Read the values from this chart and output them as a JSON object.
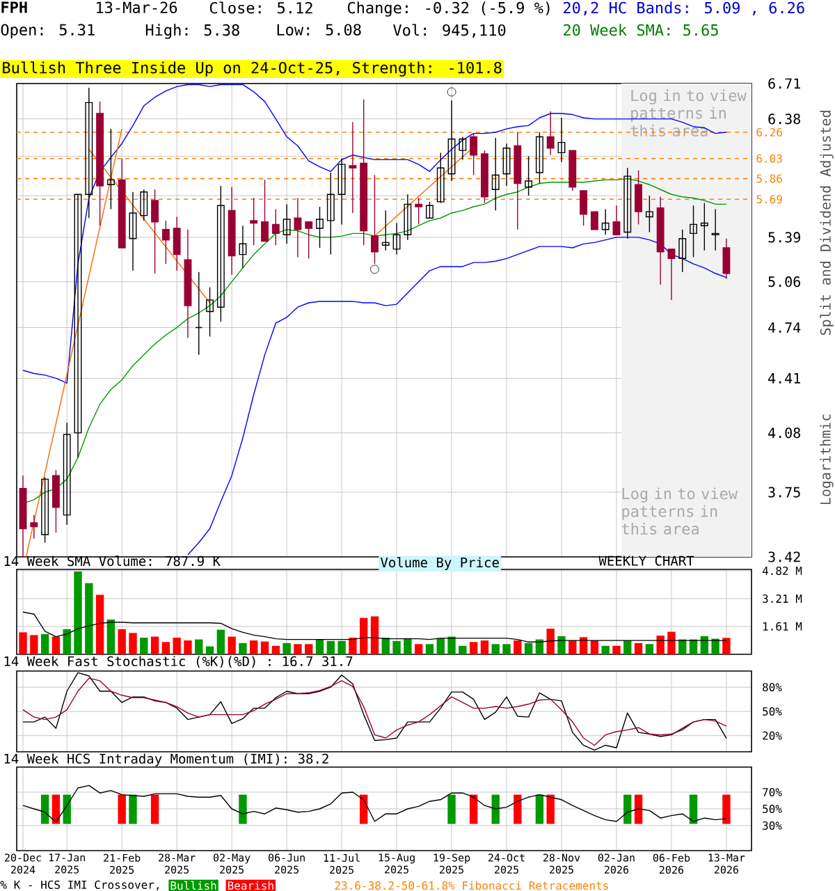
{
  "chart_data": [
    {
      "type": "candlestick",
      "title": "FPH",
      "x": [
        "2024-12-20",
        "2024-12-27",
        "2025-01-03",
        "2025-01-10",
        "2025-01-17",
        "2025-01-24",
        "2025-01-31",
        "2025-02-07",
        "2025-02-14",
        "2025-02-21",
        "2025-02-28",
        "2025-03-07",
        "2025-03-14",
        "2025-03-21",
        "2025-03-28",
        "2025-04-04",
        "2025-04-11",
        "2025-04-18",
        "2025-04-25",
        "2025-05-02",
        "2025-05-09",
        "2025-05-16",
        "2025-05-23",
        "2025-05-30",
        "2025-06-06",
        "2025-06-13",
        "2025-06-20",
        "2025-06-27",
        "2025-07-04",
        "2025-07-11",
        "2025-07-18",
        "2025-07-25",
        "2025-08-01",
        "2025-08-08",
        "2025-08-15",
        "2025-08-22",
        "2025-08-29",
        "2025-09-05",
        "2025-09-12",
        "2025-09-19",
        "2025-09-26",
        "2025-10-03",
        "2025-10-10",
        "2025-10-17",
        "2025-10-24",
        "2025-10-31",
        "2025-11-07",
        "2025-11-14",
        "2025-11-21",
        "2025-11-28",
        "2025-12-05",
        "2025-12-12",
        "2025-12-19",
        "2025-12-26",
        "2026-01-02",
        "2026-01-09",
        "2026-01-16",
        "2026-01-23",
        "2026-01-30",
        "2026-02-06",
        "2026-02-13",
        "2026-02-20",
        "2026-02-27",
        "2026-03-06",
        "2026-03-13"
      ],
      "ohlc": [
        [
          3.77,
          3.84,
          3.42,
          3.56
        ],
        [
          3.59,
          3.63,
          3.51,
          3.57
        ],
        [
          3.53,
          3.83,
          3.49,
          3.82
        ],
        [
          3.84,
          3.87,
          3.54,
          3.67
        ],
        [
          3.63,
          4.14,
          3.58,
          4.07
        ],
        [
          4.08,
          5.73,
          3.94,
          5.73
        ],
        [
          5.73,
          6.67,
          5.54,
          6.53
        ],
        [
          6.43,
          6.54,
          5.48,
          5.8
        ],
        [
          5.81,
          6.29,
          5.61,
          5.85
        ],
        [
          5.85,
          6.03,
          5.31,
          5.31
        ],
        [
          5.38,
          5.75,
          5.14,
          5.58
        ],
        [
          5.56,
          5.77,
          5.52,
          5.75
        ],
        [
          5.68,
          5.77,
          5.12,
          5.51
        ],
        [
          5.45,
          5.52,
          5.19,
          5.37
        ],
        [
          5.46,
          5.55,
          5.14,
          5.26
        ],
        [
          5.22,
          5.45,
          4.67,
          4.89
        ],
        [
          4.74,
          5.13,
          4.56,
          4.74
        ],
        [
          4.85,
          5.02,
          4.68,
          4.93
        ],
        [
          4.88,
          5.8,
          4.78,
          5.64
        ],
        [
          5.6,
          5.79,
          5.11,
          5.25
        ],
        [
          5.26,
          5.48,
          5.16,
          5.34
        ],
        [
          5.52,
          5.7,
          5.33,
          5.5
        ],
        [
          5.51,
          5.85,
          5.36,
          5.36
        ],
        [
          5.49,
          5.61,
          5.33,
          5.42
        ],
        [
          5.41,
          5.65,
          5.34,
          5.53
        ],
        [
          5.54,
          5.7,
          5.24,
          5.45
        ],
        [
          5.51,
          5.51,
          5.23,
          5.46
        ],
        [
          5.46,
          5.63,
          5.31,
          5.53
        ],
        [
          5.52,
          5.91,
          5.26,
          5.73
        ],
        [
          5.73,
          6.03,
          5.49,
          5.98
        ],
        [
          5.97,
          6.35,
          5.58,
          5.95
        ],
        [
          5.99,
          6.56,
          5.33,
          5.44
        ],
        [
          5.4,
          5.89,
          5.19,
          5.28
        ],
        [
          5.33,
          5.6,
          5.29,
          5.35
        ],
        [
          5.3,
          5.5,
          5.26,
          5.41
        ],
        [
          5.41,
          5.73,
          5.37,
          5.65
        ],
        [
          5.65,
          5.7,
          5.49,
          5.63
        ],
        [
          5.54,
          5.67,
          5.54,
          5.64
        ],
        [
          5.67,
          6.08,
          5.66,
          5.95
        ],
        [
          5.9,
          6.55,
          5.84,
          6.2
        ],
        [
          6.1,
          6.22,
          6.02,
          6.2
        ],
        [
          6.22,
          6.25,
          5.89,
          6.06
        ],
        [
          6.07,
          6.1,
          5.66,
          5.71
        ],
        [
          5.77,
          6.21,
          5.6,
          5.89
        ],
        [
          5.9,
          6.16,
          5.8,
          6.12
        ],
        [
          6.14,
          6.26,
          5.45,
          5.82
        ],
        [
          5.79,
          6.05,
          5.72,
          5.84
        ],
        [
          5.91,
          6.26,
          5.82,
          6.22
        ],
        [
          6.22,
          6.45,
          6.06,
          6.12
        ],
        [
          6.08,
          6.39,
          6.0,
          6.17
        ],
        [
          6.1,
          6.1,
          5.76,
          5.79
        ],
        [
          5.76,
          5.76,
          5.48,
          5.57
        ],
        [
          5.59,
          5.59,
          5.45,
          5.45
        ],
        [
          5.45,
          5.61,
          5.41,
          5.5
        ],
        [
          5.51,
          5.64,
          5.41,
          5.41
        ],
        [
          5.43,
          5.95,
          5.38,
          5.88
        ],
        [
          5.81,
          5.93,
          5.49,
          5.59
        ],
        [
          5.55,
          5.72,
          5.43,
          5.59
        ],
        [
          5.62,
          5.71,
          5.04,
          5.28
        ],
        [
          5.3,
          5.3,
          4.93,
          5.23
        ],
        [
          5.23,
          5.45,
          5.13,
          5.38
        ],
        [
          5.42,
          5.64,
          5.24,
          5.49
        ],
        [
          5.48,
          5.66,
          5.29,
          5.5
        ],
        [
          5.41,
          5.61,
          5.29,
          5.42
        ],
        [
          5.31,
          5.38,
          5.08,
          5.12
        ]
      ],
      "colors": [
        "#990033",
        "#990033",
        "#000000",
        "#990033",
        "#000000",
        "#000000",
        "#000000",
        "#990033",
        "#000000",
        "#990033",
        "#000000",
        "#000000",
        "#990033",
        "#990033",
        "#990033",
        "#990033",
        "#000000",
        "#000000",
        "#000000",
        "#990033",
        "#000000",
        "#990033",
        "#990033",
        "#990033",
        "#000000",
        "#990033",
        "#990033",
        "#000000",
        "#000000",
        "#000000",
        "#990033",
        "#990033",
        "#990033",
        "#000000",
        "#000000",
        "#000000",
        "#990033",
        "#000000",
        "#000000",
        "#000000",
        "#000000",
        "#990033",
        "#990033",
        "#000000",
        "#000000",
        "#990033",
        "#000000",
        "#000000",
        "#990033",
        "#000000",
        "#990033",
        "#990033",
        "#990033",
        "#000000",
        "#990033",
        "#000000",
        "#990033",
        "#000000",
        "#990033",
        "#990033",
        "#000000",
        "#000000",
        "#000000",
        "#000000",
        "#990033"
      ],
      "series": [
        {
          "type": "line",
          "color": "#0000ff",
          "values": [
            4.46,
            4.44,
            4.43,
            4.41,
            4.38,
            5.19,
            5.7,
            5.92,
            6.04,
            6.16,
            6.32,
            6.5,
            6.58,
            6.64,
            6.68,
            6.7,
            6.7,
            6.68,
            6.7,
            6.7,
            6.7,
            6.63,
            6.54,
            6.38,
            6.22,
            6.14,
            6.01,
            5.96,
            5.92,
            6.02,
            6.06,
            6.04,
            6.02,
            6.02,
            6.02,
            6.02,
            5.98,
            5.92,
            6.02,
            6.11,
            6.19,
            6.25,
            6.25,
            6.26,
            6.29,
            6.31,
            6.32,
            6.39,
            6.43,
            6.43,
            6.42,
            6.39,
            6.38,
            6.38,
            6.38,
            6.38,
            6.38,
            6.38,
            6.38,
            6.38,
            6.35,
            6.31,
            6.3,
            6.25,
            6.26
          ]
        },
        {
          "type": "line",
          "color": "#0000ff",
          "values": [
            null,
            null,
            null,
            null,
            null,
            null,
            null,
            null,
            null,
            null,
            null,
            null,
            null,
            null,
            null,
            3.43,
            3.49,
            3.56,
            3.7,
            3.84,
            4.05,
            4.31,
            4.56,
            4.77,
            4.81,
            4.88,
            4.91,
            4.92,
            4.92,
            4.92,
            4.92,
            4.91,
            4.91,
            4.89,
            4.9,
            4.98,
            5.06,
            5.14,
            5.17,
            5.17,
            5.17,
            5.2,
            5.2,
            5.21,
            5.23,
            5.26,
            5.29,
            5.32,
            5.32,
            5.32,
            5.31,
            5.34,
            5.35,
            5.37,
            5.39,
            5.39,
            5.39,
            5.37,
            5.34,
            5.26,
            5.23,
            5.19,
            5.16,
            5.12,
            5.09
          ]
        },
        {
          "type": "line",
          "color": "#009900",
          "values": [
            3.69,
            3.71,
            3.75,
            3.77,
            3.82,
            3.94,
            4.11,
            4.25,
            4.34,
            4.4,
            4.49,
            4.56,
            4.63,
            4.69,
            4.74,
            4.8,
            4.84,
            4.89,
            4.96,
            5.06,
            5.16,
            5.26,
            5.34,
            5.42,
            5.45,
            5.44,
            5.41,
            5.39,
            5.39,
            5.4,
            5.42,
            5.42,
            5.4,
            5.41,
            5.42,
            5.44,
            5.48,
            5.52,
            5.54,
            5.58,
            5.6,
            5.63,
            5.65,
            5.7,
            5.73,
            5.75,
            5.79,
            5.82,
            5.83,
            5.83,
            5.83,
            5.83,
            5.84,
            5.85,
            5.85,
            5.86,
            5.84,
            5.81,
            5.77,
            5.73,
            5.71,
            5.7,
            5.68,
            5.65,
            5.65
          ]
        },
        {
          "type": "line",
          "color": "#ff6600",
          "x": [
            "2024-12-22",
            "2025-02-21"
          ],
          "values": [
            3.42,
            6.29
          ]
        },
        {
          "type": "line",
          "color": "#ff6600",
          "x": [
            "2025-01-31",
            "2025-04-18"
          ],
          "values": [
            6.11,
            4.91
          ]
        },
        {
          "type": "line",
          "color": "#ff6600",
          "x": [
            "2025-08-01",
            "2025-10-03"
          ],
          "values": [
            5.4,
            6.13
          ]
        },
        {
          "type": "scatter",
          "color": "#000000",
          "marker": "circle",
          "x": [
            "2025-09-19",
            "2025-08-01"
          ],
          "values": [
            6.63,
            5.15
          ]
        }
      ],
      "log": true,
      "grid": true,
      "tick_labels": "y",
      "xlim": [
        "2024-12-16",
        "2026-03-29"
      ],
      "xticks": [
        {
          "value": "2024-12-20",
          "label": null
        },
        {
          "value": "2025-01-17",
          "label": null
        },
        {
          "value": "2025-02-21",
          "label": null
        },
        {
          "value": "2025-03-28",
          "label": null
        },
        {
          "value": "2025-05-02",
          "label": null
        },
        {
          "value": "2025-06-06",
          "label": null
        },
        {
          "value": "2025-07-11",
          "label": null
        },
        {
          "value": "2025-08-15",
          "label": null
        },
        {
          "value": "2025-09-19",
          "label": null
        },
        {
          "value": "2025-10-24",
          "label": null
        },
        {
          "value": "2025-11-28",
          "label": null
        },
        {
          "value": "2026-01-02",
          "label": null
        },
        {
          "value": "2026-02-06",
          "label": null
        },
        {
          "value": "2026-03-13",
          "label": null
        }
      ],
      "ylim": [
        3.42,
        6.71
      ],
      "yticks": [
        3.42,
        3.75,
        4.08,
        4.41,
        4.74,
        5.06,
        5.39,
        {
          "value": 5.72,
          "label": null
        },
        {
          "value": 6.05,
          "label": null
        },
        6.38,
        6.71
      ],
      "ref_lines": [
        {
          "axis": "y",
          "value": 6.26,
          "label": "6.26",
          "color": "#ff8000",
          "line_style": "dashed"
        },
        {
          "axis": "y",
          "value": 6.03,
          "label": "6.03",
          "color": "#ff8000",
          "line_style": "dashed"
        },
        {
          "axis": "y",
          "value": 5.86,
          "label": "5.86",
          "color": "#ff8000",
          "line_style": "dashed"
        },
        {
          "axis": "y",
          "value": 5.69,
          "label": "5.69",
          "color": "#ff8000",
          "line_style": "dashed"
        }
      ],
      "bands": [
        {
          "axis": "x",
          "from": "2026-01-05",
          "to": "2026-03-29",
          "label": "Log in to view patterns in this area",
          "color": "#f2f2f2"
        }
      ],
      "annotations": [
        "13-Mar-26",
        "Close: 5.12",
        "Change: -0.32 (-5.9 %)",
        "20,2 HC Bands: 5.09 , 6.26",
        "Open: 5.31",
        "High: 5.38",
        "Low: 5.08",
        "Vol: 945,110",
        "20 Week SMA: 5.65",
        "Bullish Three Inside Up on 24-Oct-25, Strength: -101.8",
        "Split and Dividend Adjusted",
        "Logarithmic",
        "Log in to view patterns in this area",
        "23.6-38.2-50-61.8% Fibonacci Retracements"
      ]
    },
    {
      "type": "bar",
      "title": "14 Week SMA Volume: 787.9 K",
      "x": [
        "2024-12-20",
        "2024-12-27",
        "2025-01-03",
        "2025-01-10",
        "2025-01-17",
        "2025-01-24",
        "2025-01-31",
        "2025-02-07",
        "2025-02-14",
        "2025-02-21",
        "2025-02-28",
        "2025-03-07",
        "2025-03-14",
        "2025-03-21",
        "2025-03-28",
        "2025-04-04",
        "2025-04-11",
        "2025-04-18",
        "2025-04-25",
        "2025-05-02",
        "2025-05-09",
        "2025-05-16",
        "2025-05-23",
        "2025-05-30",
        "2025-06-06",
        "2025-06-13",
        "2025-06-20",
        "2025-06-27",
        "2025-07-04",
        "2025-07-11",
        "2025-07-18",
        "2025-07-25",
        "2025-08-01",
        "2025-08-08",
        "2025-08-15",
        "2025-08-22",
        "2025-08-29",
        "2025-09-05",
        "2025-09-12",
        "2025-09-19",
        "2025-09-26",
        "2025-10-03",
        "2025-10-10",
        "2025-10-17",
        "2025-10-24",
        "2025-10-31",
        "2025-11-07",
        "2025-11-14",
        "2025-11-21",
        "2025-11-28",
        "2025-12-05",
        "2025-12-12",
        "2025-12-19",
        "2025-12-26",
        "2026-01-02",
        "2026-01-09",
        "2026-01-16",
        "2026-01-23",
        "2026-01-30",
        "2026-02-06",
        "2026-02-13",
        "2026-02-20",
        "2026-02-27",
        "2026-03-06",
        "2026-03-13"
      ],
      "series": [
        {
          "values": [
            1.27,
            1.11,
            1.17,
            1.02,
            1.45,
            4.78,
            4.11,
            3.43,
            2.01,
            1.45,
            1.23,
            0.96,
            1.02,
            0.71,
            0.96,
            0.8,
            0.86,
            0.46,
            1.42,
            1.02,
            0.65,
            0.8,
            0.74,
            0.49,
            0.65,
            0.59,
            0.59,
            0.86,
            0.77,
            0.77,
            0.96,
            2.1,
            2.19,
            0.96,
            0.77,
            0.93,
            0.59,
            0.59,
            0.93,
            1.02,
            0.49,
            0.71,
            0.8,
            0.59,
            0.59,
            0.8,
            0.65,
            0.86,
            1.48,
            1.05,
            0.8,
            0.99,
            0.8,
            0.49,
            0.49,
            0.8,
            0.65,
            0.59,
            1.08,
            1.3,
            0.86,
            0.86,
            1.05,
            0.9,
            0.95
          ],
          "colors": [
            "#ff0000",
            "#ff0000",
            "#009900",
            "#ff0000",
            "#009900",
            "#009900",
            "#009900",
            "#ff0000",
            "#009900",
            "#ff0000",
            "#ff0000",
            "#009900",
            "#ff0000",
            "#ff0000",
            "#ff0000",
            "#ff0000",
            "#009900",
            "#009900",
            "#009900",
            "#ff0000",
            "#009900",
            "#ff0000",
            "#ff0000",
            "#ff0000",
            "#009900",
            "#ff0000",
            "#ff0000",
            "#009900",
            "#009900",
            "#009900",
            "#ff0000",
            "#ff0000",
            "#ff0000",
            "#009900",
            "#009900",
            "#009900",
            "#ff0000",
            "#009900",
            "#009900",
            "#009900",
            "#009900",
            "#ff0000",
            "#ff0000",
            "#009900",
            "#009900",
            "#ff0000",
            "#009900",
            "#009900",
            "#ff0000",
            "#009900",
            "#ff0000",
            "#ff0000",
            "#ff0000",
            "#009900",
            "#ff0000",
            "#009900",
            "#ff0000",
            "#009900",
            "#ff0000",
            "#ff0000",
            "#009900",
            "#009900",
            "#009900",
            "#009900",
            "#ff0000"
          ]
        },
        {
          "type": "line",
          "color": "#000000",
          "values": [
            2.44,
            2.32,
            1.33,
            1.02,
            1.17,
            1.48,
            1.64,
            1.79,
            1.85,
            1.85,
            1.82,
            1.82,
            1.82,
            1.82,
            1.82,
            1.82,
            1.82,
            1.82,
            1.79,
            1.48,
            1.27,
            1.11,
            1.02,
            0.9,
            0.86,
            0.86,
            0.86,
            0.86,
            0.86,
            0.86,
            0.86,
            0.96,
            0.96,
            0.9,
            0.9,
            0.9,
            0.9,
            0.86,
            0.93,
            0.93,
            0.93,
            0.93,
            0.93,
            0.93,
            0.93,
            0.86,
            0.71,
            0.71,
            0.77,
            0.8,
            0.8,
            0.8,
            0.8,
            0.8,
            0.8,
            0.8,
            0.8,
            0.8,
            0.8,
            0.8,
            0.8,
            0.8,
            0.8,
            0.8,
            0.79
          ]
        }
      ],
      "grid": true,
      "tick_labels": "y",
      "xlim": [
        "2024-12-16",
        "2026-03-29"
      ],
      "xticks": [
        {
          "value": "2024-12-20",
          "label": null
        },
        {
          "value": "2025-01-17",
          "label": null
        },
        {
          "value": "2025-02-21",
          "label": null
        },
        {
          "value": "2025-03-28",
          "label": null
        },
        {
          "value": "2025-05-02",
          "label": null
        },
        {
          "value": "2025-06-06",
          "label": null
        },
        {
          "value": "2025-07-11",
          "label": null
        },
        {
          "value": "2025-08-15",
          "label": null
        },
        {
          "value": "2025-09-19",
          "label": null
        },
        {
          "value": "2025-10-24",
          "label": null
        },
        {
          "value": "2025-11-28",
          "label": null
        },
        {
          "value": "2026-01-02",
          "label": null
        },
        {
          "value": "2026-02-06",
          "label": null
        },
        {
          "value": "2026-03-13",
          "label": null
        }
      ],
      "ylim": [
        0,
        4.9
      ],
      "yticks": [
        {
          "value": 1.61,
          "label": "1.61 M"
        },
        {
          "value": 3.21,
          "label": "3.21 M"
        },
        {
          "value": 4.82,
          "label": "4.82 M"
        }
      ],
      "annotations": [
        "Volume By Price",
        "WEEKLY CHART"
      ]
    },
    {
      "type": "line",
      "title": "14 Week Fast Stochastic (%K)(%D) : 16.7 31.7",
      "x": [
        "2024-12-20",
        "2024-12-27",
        "2025-01-03",
        "2025-01-10",
        "2025-01-17",
        "2025-01-24",
        "2025-01-31",
        "2025-02-07",
        "2025-02-14",
        "2025-02-21",
        "2025-02-28",
        "2025-03-07",
        "2025-03-14",
        "2025-03-21",
        "2025-03-28",
        "2025-04-04",
        "2025-04-11",
        "2025-04-18",
        "2025-04-25",
        "2025-05-02",
        "2025-05-09",
        "2025-05-16",
        "2025-05-23",
        "2025-05-30",
        "2025-06-06",
        "2025-06-13",
        "2025-06-20",
        "2025-06-27",
        "2025-07-04",
        "2025-07-11",
        "2025-07-18",
        "2025-07-25",
        "2025-08-01",
        "2025-08-08",
        "2025-08-15",
        "2025-08-22",
        "2025-08-29",
        "2025-09-05",
        "2025-09-12",
        "2025-09-19",
        "2025-09-26",
        "2025-10-03",
        "2025-10-10",
        "2025-10-17",
        "2025-10-24",
        "2025-10-31",
        "2025-11-07",
        "2025-11-14",
        "2025-11-21",
        "2025-11-28",
        "2025-12-05",
        "2025-12-12",
        "2025-12-19",
        "2025-12-26",
        "2026-01-02",
        "2026-01-09",
        "2026-01-16",
        "2026-01-23",
        "2026-01-30",
        "2026-02-06",
        "2026-02-13",
        "2026-02-20",
        "2026-02-27",
        "2026-03-06",
        "2026-03-13"
      ],
      "series": [
        {
          "color": "#000000",
          "values": [
            37,
            37,
            43,
            29,
            75,
            98,
            94,
            75,
            75,
            61,
            68,
            68,
            63,
            61,
            54,
            40,
            43,
            46,
            62,
            35,
            41,
            54,
            54,
            67,
            75,
            72,
            72,
            75,
            80,
            95,
            84,
            46,
            14,
            15,
            17,
            37,
            37,
            37,
            54,
            74,
            74,
            65,
            40,
            49,
            68,
            44,
            43,
            73,
            65,
            63,
            24,
            8,
            2,
            8,
            5,
            48,
            24,
            22,
            19,
            21,
            29,
            37,
            40,
            40,
            16.7
          ]
        },
        {
          "color": "#990033",
          "values": [
            52,
            43,
            40,
            43,
            52,
            75,
            91,
            88,
            75,
            70,
            67,
            67,
            64,
            61,
            56,
            48,
            43,
            46,
            46,
            46,
            46,
            51,
            59,
            65,
            72,
            72,
            73,
            76,
            81,
            88,
            81,
            56,
            21,
            17,
            27,
            33,
            37,
            46,
            57,
            68,
            61,
            54,
            54,
            56,
            54,
            56,
            59,
            64,
            65,
            52,
            37,
            17,
            8,
            21,
            25,
            27,
            30,
            22,
            21,
            22,
            27,
            37,
            40,
            38,
            31.7
          ]
        }
      ],
      "grid": true,
      "tick_labels": "y",
      "xlim": [
        "2024-12-16",
        "2026-03-29"
      ],
      "xticks": [
        {
          "value": "2024-12-20",
          "label": null
        },
        {
          "value": "2025-01-17",
          "label": null
        },
        {
          "value": "2025-02-21",
          "label": null
        },
        {
          "value": "2025-03-28",
          "label": null
        },
        {
          "value": "2025-05-02",
          "label": null
        },
        {
          "value": "2025-06-06",
          "label": null
        },
        {
          "value": "2025-07-11",
          "label": null
        },
        {
          "value": "2025-08-15",
          "label": null
        },
        {
          "value": "2025-09-19",
          "label": null
        },
        {
          "value": "2025-10-24",
          "label": null
        },
        {
          "value": "2025-11-28",
          "label": null
        },
        {
          "value": "2026-01-02",
          "label": null
        },
        {
          "value": "2026-02-06",
          "label": null
        },
        {
          "value": "2026-03-13",
          "label": null
        }
      ],
      "ylim": [
        0,
        100
      ],
      "yticks": [
        {
          "value": 20,
          "label": "20%"
        },
        {
          "value": 50,
          "label": "50%"
        },
        {
          "value": 80,
          "label": "80%"
        }
      ]
    },
    {
      "type": "line",
      "title": "14 Week HCS Intraday Momentum (IMI): 38.2",
      "x": [
        "2024-12-20",
        "2024-12-27",
        "2025-01-03",
        "2025-01-10",
        "2025-01-17",
        "2025-01-24",
        "2025-01-31",
        "2025-02-07",
        "2025-02-14",
        "2025-02-21",
        "2025-02-28",
        "2025-03-07",
        "2025-03-14",
        "2025-03-21",
        "2025-03-28",
        "2025-04-04",
        "2025-04-11",
        "2025-04-18",
        "2025-04-25",
        "2025-05-02",
        "2025-05-09",
        "2025-05-16",
        "2025-05-23",
        "2025-05-30",
        "2025-06-06",
        "2025-06-13",
        "2025-06-20",
        "2025-06-27",
        "2025-07-04",
        "2025-07-11",
        "2025-07-18",
        "2025-07-25",
        "2025-08-01",
        "2025-08-08",
        "2025-08-15",
        "2025-08-22",
        "2025-08-29",
        "2025-09-05",
        "2025-09-12",
        "2025-09-19",
        "2025-09-26",
        "2025-10-03",
        "2025-10-10",
        "2025-10-17",
        "2025-10-24",
        "2025-10-31",
        "2025-11-07",
        "2025-11-14",
        "2025-11-21",
        "2025-11-28",
        "2025-12-05",
        "2025-12-12",
        "2025-12-19",
        "2025-12-26",
        "2026-01-02",
        "2026-01-09",
        "2026-01-16",
        "2026-01-23",
        "2026-01-30",
        "2026-02-06",
        "2026-02-13",
        "2026-02-20",
        "2026-02-27",
        "2026-03-06",
        "2026-03-13"
      ],
      "series": [
        {
          "type": "bar",
          "name": "Bullish",
          "color": "#009900",
          "x": [
            "2025-01-03",
            "2025-01-17",
            "2025-02-28",
            "2025-05-09",
            "2025-09-19",
            "2025-10-17",
            "2025-11-14",
            "2026-01-09",
            "2026-02-20"
          ],
          "values": [
            35,
            35,
            35,
            35,
            35,
            35,
            35,
            35,
            35
          ],
          "base": [
            32,
            32,
            32,
            32,
            32,
            32,
            32,
            32,
            32
          ]
        },
        {
          "type": "bar",
          "name": "Bearish",
          "color": "#ff0000",
          "x": [
            "2025-01-10",
            "2025-02-21",
            "2025-03-14",
            "2025-07-25",
            "2025-10-03",
            "2025-10-31",
            "2025-11-21",
            "2026-01-16",
            "2026-03-13"
          ],
          "values": [
            35,
            35,
            35,
            35,
            35,
            35,
            35,
            35,
            35
          ],
          "base": [
            32,
            32,
            32,
            32,
            32,
            32,
            32,
            32,
            32
          ]
        },
        {
          "type": "line",
          "color": "#000000",
          "values": [
            54,
            50,
            46,
            34,
            54,
            75,
            78,
            69,
            72,
            67,
            66,
            65,
            68,
            68,
            68,
            65,
            64,
            64,
            66,
            50,
            44,
            47,
            44,
            51,
            49,
            46,
            47,
            50,
            56,
            69,
            70,
            61,
            35,
            44,
            44,
            50,
            53,
            59,
            61,
            69,
            69,
            64,
            54,
            50,
            52,
            59,
            64,
            67,
            64,
            61,
            54,
            48,
            42,
            37,
            35,
            46,
            50,
            48,
            39,
            42,
            44,
            35,
            39,
            37,
            38.2
          ]
        }
      ],
      "grid": true,
      "legend": "bottom",
      "legend_title": "% K - HCS IMI Crossover,",
      "xlim": [
        "2024-12-16",
        "2026-03-29"
      ],
      "xticks": [
        {
          "value": "2024-12-20",
          "label": "20-Dec 2024"
        },
        {
          "value": "2025-01-17",
          "label": "17-Jan 2025"
        },
        {
          "value": "2025-02-21",
          "label": "21-Feb 2025"
        },
        {
          "value": "2025-03-28",
          "label": "28-Mar 2025"
        },
        {
          "value": "2025-05-02",
          "label": "02-May 2025"
        },
        {
          "value": "2025-06-06",
          "label": "06-Jun 2025"
        },
        {
          "value": "2025-07-11",
          "label": "11-Jul 2025"
        },
        {
          "value": "2025-08-15",
          "label": "15-Aug 2025"
        },
        {
          "value": "2025-09-19",
          "label": "19-Sep 2025"
        },
        {
          "value": "2025-10-24",
          "label": "24-Oct 2025"
        },
        {
          "value": "2025-11-28",
          "label": "28-Nov 2025"
        },
        {
          "value": "2026-01-02",
          "label": "02-Jan 2026"
        },
        {
          "value": "2026-02-06",
          "label": "06-Feb 2026"
        },
        {
          "value": "2026-03-13",
          "label": "13-Mar 2026"
        }
      ],
      "ylim": [
        0,
        100
      ],
      "yticks": [
        {
          "value": 30,
          "label": "30%"
        },
        {
          "value": 50,
          "label": "50%"
        },
        {
          "value": 70,
          "label": "70%"
        }
      ]
    }
  ]
}
